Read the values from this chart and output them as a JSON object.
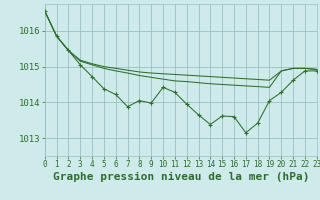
{
  "title": "Graphe pression niveau de la mer (hPa)",
  "background_color": "#ceeaea",
  "plot_bg_color": "#ceeaea",
  "grid_color": "#9bbfbf",
  "line_color": "#2d6e2d",
  "xlim": [
    0,
    23
  ],
  "ylim": [
    1012.5,
    1016.75
  ],
  "yticks": [
    1013,
    1014,
    1015,
    1016
  ],
  "xticks": [
    0,
    1,
    2,
    3,
    4,
    5,
    6,
    7,
    8,
    9,
    10,
    11,
    12,
    13,
    14,
    15,
    16,
    17,
    18,
    19,
    20,
    21,
    22,
    23
  ],
  "series_no_marker": [
    [
      1016.55,
      1015.85,
      1015.45,
      1015.15,
      1015.05,
      1014.95,
      1014.88,
      1014.82,
      1014.75,
      1014.7,
      1014.65,
      1014.6,
      1014.58,
      1014.55,
      1014.52,
      1014.5,
      1014.48,
      1014.46,
      1014.44,
      1014.42,
      1014.88,
      1014.95,
      1014.95,
      1014.92
    ],
    [
      1016.55,
      1015.85,
      1015.45,
      1015.18,
      1015.08,
      1015.0,
      1014.95,
      1014.9,
      1014.85,
      1014.82,
      1014.8,
      1014.78,
      1014.76,
      1014.74,
      1014.72,
      1014.7,
      1014.68,
      1014.66,
      1014.64,
      1014.62,
      1014.88,
      1014.95,
      1014.95,
      1014.92
    ]
  ],
  "series_marker": [
    1016.55,
    1015.85,
    1015.45,
    1015.05,
    1014.72,
    1014.38,
    1014.22,
    1013.88,
    1014.05,
    1013.98,
    1014.42,
    1014.28,
    1013.95,
    1013.65,
    1013.38,
    1013.62,
    1013.6,
    1013.15,
    1013.42,
    1014.05,
    1014.28,
    1014.62,
    1014.88,
    1014.88
  ],
  "title_fontsize": 8,
  "tick_fontsize": 6.5,
  "title_color": "#2d6e2d"
}
